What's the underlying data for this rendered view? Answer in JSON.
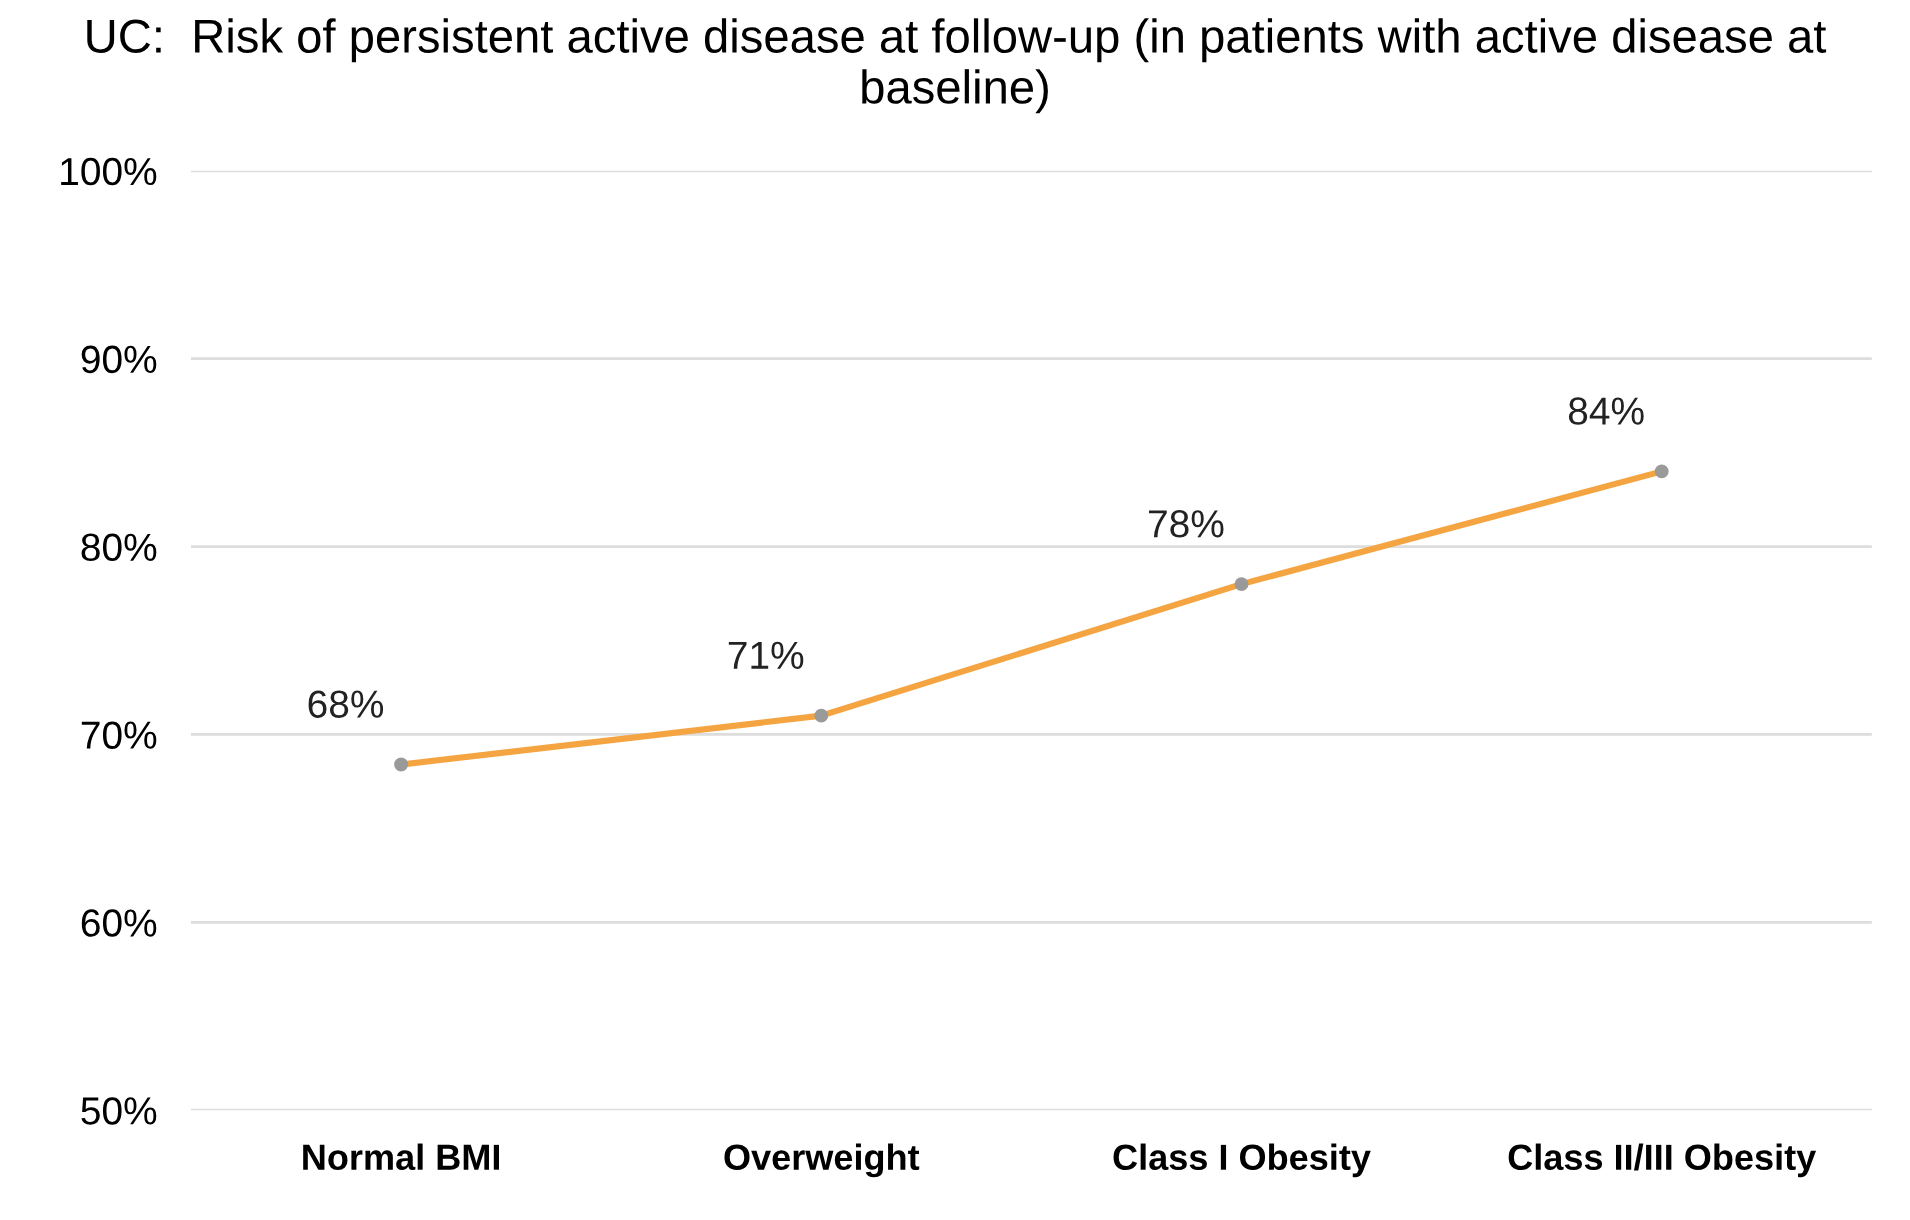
{
  "chart_data": {
    "type": "line",
    "title": "UC:  Risk of persistent active disease at follow-up (in patients with active disease at baseline)",
    "categories": [
      "Normal BMI",
      "Overweight",
      "Class I Obesity",
      "Class II/III Obesity"
    ],
    "series": [
      {
        "color": "#f5a442",
        "values": [
          68.4,
          71,
          78,
          84
        ],
        "value_labels": [
          "68%",
          "71%",
          "78%",
          "84%"
        ]
      }
    ],
    "ylim": [
      50,
      100
    ],
    "yticks": [
      {
        "value": 50,
        "label": "50%"
      },
      {
        "value": 60,
        "label": "60%"
      },
      {
        "value": 70,
        "label": "70%"
      },
      {
        "value": 80,
        "label": "80%"
      },
      {
        "value": 90,
        "label": "90%"
      },
      {
        "value": 100,
        "label": "100%"
      }
    ],
    "grid": "y",
    "marker": "circle",
    "line_style": "solid",
    "legend": false
  }
}
